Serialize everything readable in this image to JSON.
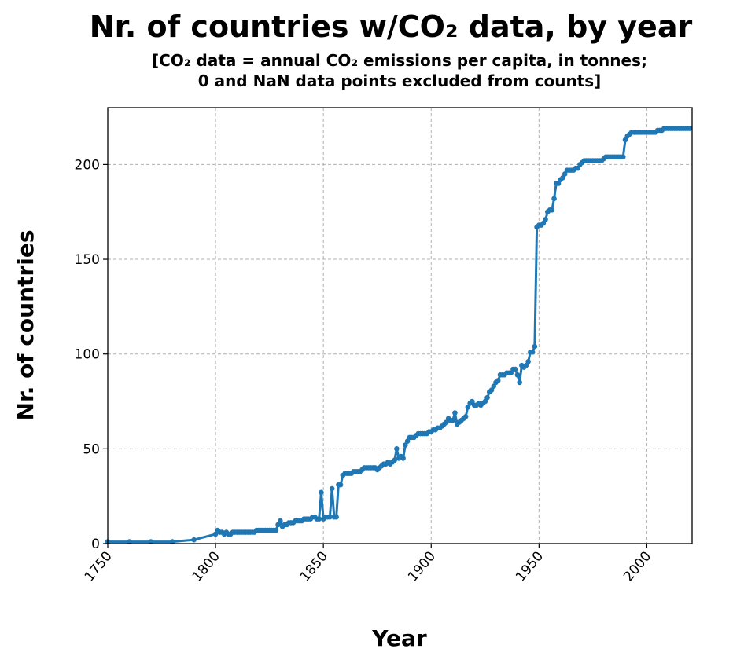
{
  "chart_data": {
    "type": "line",
    "title": "Nr. of countries w/CO₂ data, by year",
    "subtitle": [
      "[CO₂ data = annual CO₂ emissions per capita, in tonnes;",
      "0 and NaN data points excluded from counts]"
    ],
    "xlabel": "Year",
    "ylabel": "Nr. of countries",
    "color": "#1f77b4",
    "x": [
      1750,
      1760,
      1770,
      1780,
      1790,
      1800,
      1801,
      1802,
      1803,
      1804,
      1805,
      1806,
      1807,
      1808,
      1809,
      1810,
      1811,
      1812,
      1813,
      1814,
      1815,
      1816,
      1817,
      1818,
      1819,
      1820,
      1821,
      1822,
      1823,
      1824,
      1825,
      1826,
      1827,
      1828,
      1829,
      1830,
      1831,
      1832,
      1833,
      1834,
      1835,
      1836,
      1837,
      1838,
      1839,
      1840,
      1841,
      1842,
      1843,
      1844,
      1845,
      1846,
      1847,
      1848,
      1849,
      1850,
      1851,
      1852,
      1853,
      1854,
      1855,
      1856,
      1857,
      1858,
      1859,
      1860,
      1861,
      1862,
      1863,
      1864,
      1865,
      1866,
      1867,
      1868,
      1869,
      1870,
      1871,
      1872,
      1873,
      1874,
      1875,
      1876,
      1877,
      1878,
      1879,
      1880,
      1881,
      1882,
      1883,
      1884,
      1885,
      1886,
      1887,
      1888,
      1889,
      1890,
      1891,
      1892,
      1893,
      1894,
      1895,
      1896,
      1897,
      1898,
      1899,
      1900,
      1901,
      1902,
      1903,
      1904,
      1905,
      1906,
      1907,
      1908,
      1909,
      1910,
      1911,
      1912,
      1913,
      1914,
      1915,
      1916,
      1917,
      1918,
      1919,
      1920,
      1921,
      1922,
      1923,
      1924,
      1925,
      1926,
      1927,
      1928,
      1929,
      1930,
      1931,
      1932,
      1933,
      1934,
      1935,
      1936,
      1937,
      1938,
      1939,
      1940,
      1941,
      1942,
      1943,
      1944,
      1945,
      1946,
      1947,
      1948,
      1949,
      1950,
      1951,
      1952,
      1953,
      1954,
      1955,
      1956,
      1957,
      1958,
      1959,
      1960,
      1961,
      1962,
      1963,
      1964,
      1965,
      1966,
      1967,
      1968,
      1969,
      1970,
      1971,
      1972,
      1973,
      1974,
      1975,
      1976,
      1977,
      1978,
      1979,
      1980,
      1981,
      1982,
      1983,
      1984,
      1985,
      1986,
      1987,
      1988,
      1989,
      1990,
      1991,
      1992,
      1993,
      1994,
      1995,
      1996,
      1997,
      1998,
      1999,
      2000,
      2001,
      2002,
      2003,
      2004,
      2005,
      2006,
      2007,
      2008,
      2009,
      2010,
      2011,
      2012,
      2013,
      2014,
      2015,
      2016,
      2017,
      2018,
      2019,
      2020
    ],
    "values": [
      1,
      1,
      1,
      1,
      2,
      5,
      7,
      6,
      6,
      5,
      6,
      5,
      5,
      6,
      6,
      6,
      6,
      6,
      6,
      6,
      6,
      6,
      6,
      6,
      7,
      7,
      7,
      7,
      7,
      7,
      7,
      7,
      7,
      7,
      10,
      12,
      9,
      10,
      10,
      11,
      11,
      11,
      12,
      12,
      12,
      12,
      13,
      13,
      13,
      13,
      14,
      14,
      13,
      13,
      27,
      13,
      14,
      14,
      14,
      29,
      14,
      14,
      31,
      31,
      36,
      37,
      37,
      37,
      37,
      38,
      38,
      38,
      38,
      39,
      40,
      40,
      40,
      40,
      40,
      40,
      39,
      40,
      41,
      42,
      42,
      43,
      42,
      43,
      44,
      50,
      45,
      46,
      45,
      52,
      54,
      56,
      56,
      56,
      57,
      58,
      58,
      58,
      58,
      58,
      59,
      59,
      60,
      60,
      61,
      61,
      62,
      63,
      64,
      66,
      65,
      65,
      69,
      63,
      64,
      65,
      66,
      67,
      72,
      74,
      75,
      73,
      73,
      74,
      73,
      74,
      75,
      77,
      80,
      81,
      83,
      85,
      86,
      89,
      89,
      89,
      90,
      90,
      90,
      92,
      92,
      89,
      85,
      94,
      93,
      94,
      96,
      101,
      101,
      104,
      167,
      168,
      168,
      169,
      171,
      175,
      176,
      176,
      182,
      190,
      190,
      192,
      193,
      195,
      197,
      197,
      197,
      197,
      198,
      198,
      200,
      201,
      202,
      202,
      202,
      202,
      202,
      202,
      202,
      202,
      202,
      203,
      204,
      204,
      204,
      204,
      204,
      204,
      204,
      204,
      204,
      213,
      215,
      216,
      217,
      217,
      217,
      217,
      217,
      217,
      217,
      217,
      217,
      217,
      217,
      217,
      218,
      218,
      218,
      219,
      219,
      219,
      219,
      219,
      219,
      219,
      219,
      219,
      219,
      219,
      219,
      219
    ],
    "xlim": [
      1750,
      2021
    ],
    "ylim": [
      0,
      230
    ],
    "xticks": [
      1750,
      1800,
      1850,
      1900,
      1950,
      2000
    ],
    "yticks": [
      0,
      50,
      100,
      150,
      200
    ],
    "grid": true
  }
}
